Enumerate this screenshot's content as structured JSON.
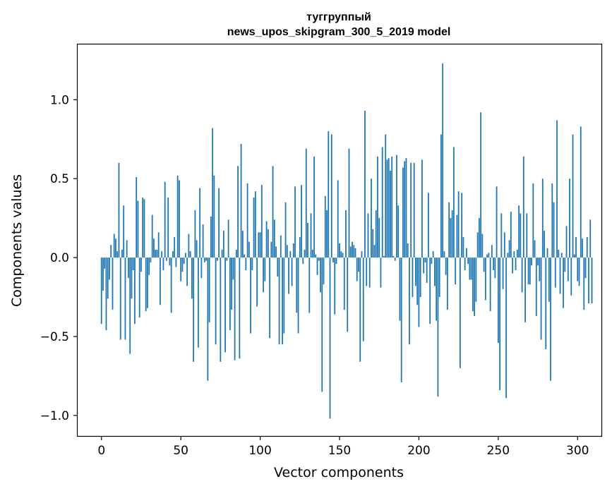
{
  "chart_data": {
    "type": "bar",
    "title": [
      "туггруппый",
      "news_upos_skipgram_300_5_2019 model"
    ],
    "xlabel": "Vector components",
    "ylabel": "Components values",
    "xlim": [
      -15,
      315
    ],
    "ylim": [
      -1.13,
      1.35
    ],
    "xticks": [
      0,
      50,
      100,
      150,
      200,
      250,
      300
    ],
    "xtick_labels": [
      "0",
      "50",
      "100",
      "150",
      "200",
      "250",
      "300"
    ],
    "yticks": [
      1.0,
      0.5,
      0.0,
      -0.5,
      -1.0
    ],
    "ytick_labels": [
      "1.0",
      "0.5",
      "0.0",
      "−0.5",
      "−1.0"
    ],
    "bar_color": "#1f77b4",
    "grid": false,
    "values": [
      -0.42,
      -0.21,
      -0.07,
      -0.46,
      -0.26,
      -0.14,
      0.08,
      -0.33,
      0.15,
      0.12,
      0.04,
      0.6,
      -0.52,
      0.05,
      0.33,
      -0.52,
      0.11,
      -0.13,
      -0.61,
      -0.26,
      -0.08,
      -0.42,
      0.51,
      0.36,
      -0.38,
      -0.09,
      0.38,
      0.37,
      -0.34,
      -0.32,
      -0.11,
      -0.03,
      0.27,
      0.12,
      0.05,
      0.05,
      0.16,
      -0.3,
      0.04,
      -0.08,
      0.48,
      -0.02,
      0.38,
      -0.05,
      -0.35,
      0.04,
      0.13,
      -0.06,
      0.52,
      0.49,
      -0.15,
      -0.09,
      -0.04,
      0.03,
      -0.18,
      0.15,
      0.04,
      -0.26,
      -0.66,
      0.3,
      0.11,
      -0.57,
      0.44,
      -0.13,
      0.21,
      -0.03,
      -0.02,
      -0.78,
      -0.41,
      0.26,
      0.82,
      0.52,
      -0.55,
      -0.02,
      0.44,
      -0.66,
      0.05,
      0.17,
      -0.6,
      -0.02,
      0.24,
      -0.46,
      -0.33,
      -0.14,
      -0.65,
      0.05,
      0.58,
      -0.64,
      0.72,
      0.17,
      0.02,
      -0.08,
      0.47,
      0.1,
      -0.48,
      -0.08,
      0.38,
      0.42,
      -0.31,
      0.16,
      0.16,
      0.46,
      -0.22,
      -0.15,
      0.23,
      0.18,
      -0.51,
      0.1,
      0.58,
      0.24,
      0.07,
      -0.12,
      -0.55,
      0.14,
      -0.55,
      -0.48,
      0.35,
      0.08,
      -0.23,
      0.04,
      -0.18,
      0.09,
      0.45,
      -0.35,
      -0.48,
      0.13,
      0.46,
      -0.04,
      0.05,
      0.69,
      0.22,
      -0.35,
      0.28,
      0.05,
      0.64,
      0.02,
      -0.11,
      -0.02,
      -0.22,
      -0.85,
      -0.17,
      0.39,
      0.3,
      0.8,
      -1.02,
      0.78,
      -0.03,
      -0.36,
      -0.04,
      0.49,
      0.09,
      0.04,
      0.03,
      -0.33,
      0.3,
      -0.47,
      0.69,
      0.07,
      0.1,
      0.08,
      0.06,
      -0.15,
      -0.09,
      -0.66,
      0.04,
      -0.53,
      0.93,
      -0.18,
      0.28,
      -0.19,
      0.5,
      0.18,
      0.08,
      0.3,
      0.64,
      0.25,
      -0.19,
      0.7,
      0.01,
      0.78,
      0.62,
      0.63,
      0.55,
      0.64,
      0.01,
      -0.02,
      0.65,
      0.33,
      -0.4,
      -0.79,
      0.57,
      0.61,
      0.63,
      0.09,
      -0.55,
      0.6,
      -0.25,
      0.6,
      -0.18,
      -0.3,
      -0.44,
      -0.25,
      0.62,
      -0.1,
      -0.03,
      -0.16,
      0.41,
      -0.42,
      -0.04,
      0.04,
      -0.18,
      -0.4,
      -0.88,
      -0.25,
      0.78,
      1.23,
      0.04,
      -0.11,
      -0.33,
      0.35,
      0.25,
      0.3,
      0.7,
      -0.17,
      0.27,
      0.42,
      -0.7,
      0.41,
      0.13,
      -0.08,
      0.06,
      -0.04,
      -0.14,
      -0.14,
      -0.34,
      -0.37,
      -0.28,
      0.16,
      0.25,
      0.92,
      0.15,
      -0.09,
      -0.27,
      0.02,
      0.03,
      -0.34,
      0.08,
      -0.08,
      -0.13,
      0.45,
      -0.54,
      -0.84,
      0.28,
      -0.2,
      0.16,
      -0.89,
      0.03,
      0.11,
      0.29,
      -0.1,
      0.04,
      -0.08,
      0.05,
      0.33,
      0.28,
      -0.22,
      0.64,
      -0.41,
      0.28,
      -0.17,
      -0.17,
      -0.05,
      0.47,
      0.11,
      -0.37,
      -0.05,
      -0.15,
      -0.52,
      0.5,
      0.17,
      -0.58,
      0.06,
      -0.28,
      -0.78,
      0.47,
      0.35,
      -0.19,
      0.87,
      0.05,
      -0.23,
      0.03,
      -0.32,
      -0.09,
      0.2,
      -0.15,
      0.5,
      -0.24,
      0.78,
      0.02,
      0.13,
      -0.15,
      -0.18,
      0.83,
      0.12,
      -0.33,
      -0.13,
      0.13,
      -0.29,
      0.24,
      -0.29
    ]
  }
}
